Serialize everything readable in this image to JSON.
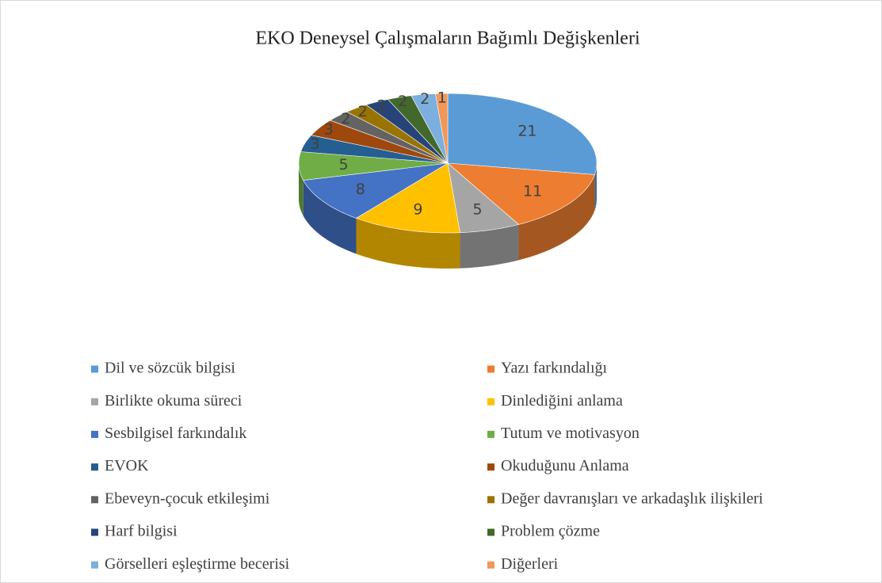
{
  "chart_data": {
    "type": "pie3d",
    "title": "EKO Deneysel Çalışmaların Bağımlı Değişkenleri",
    "categories": [
      "Dil ve sözcük bilgisi",
      "Yazı farkındalığı",
      "Birlikte okuma süreci",
      "Dinlediğini anlama",
      "Sesbilgisel farkındalık",
      "Tutum ve motivasyon",
      "EVOK",
      "Okuduğunu Anlama",
      "Ebeveyn-çocuk etkileşimi",
      "Değer davranışları ve arkadaşlık ilişkileri",
      "Harf bilgisi",
      "Problem çözme",
      "Görselleri eşleştirme becerisi",
      "Diğerleri"
    ],
    "values": [
      21,
      11,
      5,
      9,
      8,
      5,
      3,
      3,
      2,
      2,
      2,
      2,
      2,
      1
    ],
    "colors": [
      "#5b9bd5",
      "#ed7d31",
      "#a5a5a5",
      "#ffc000",
      "#4472c4",
      "#70ad47",
      "#255e91",
      "#9e480e",
      "#636363",
      "#997300",
      "#264478",
      "#43682b",
      "#7cafdd",
      "#f1975a"
    ],
    "legend": "bottom"
  }
}
